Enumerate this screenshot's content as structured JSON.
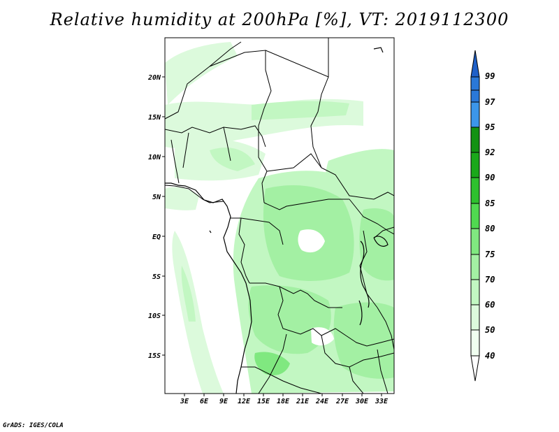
{
  "title": "Relative humidity at 200hPa [%], VT: 2019112300",
  "credit": "GrADS: IGES/COLA",
  "map": {
    "lat_labels": [
      "20N",
      "15N",
      "10N",
      "5N",
      "EQ",
      "5S",
      "10S",
      "15S"
    ],
    "lon_labels": [
      "3E",
      "6E",
      "9E",
      "12E",
      "15E",
      "18E",
      "21E",
      "24E",
      "27E",
      "30E",
      "33E"
    ],
    "lon_range": [
      0,
      35
    ],
    "lat_range": [
      -20,
      25
    ]
  },
  "colorbar": {
    "levels": [
      "99",
      "97",
      "95",
      "92",
      "90",
      "85",
      "80",
      "75",
      "70",
      "60",
      "50",
      "40"
    ],
    "colors": [
      "#1f60c8",
      "#2a78d8",
      "#3c96ea",
      "#139213",
      "#1aa81a",
      "#2ec02e",
      "#50d950",
      "#80e880",
      "#a3f0a3",
      "#c2f7c2",
      "#dcfadc",
      "#f0fff0"
    ]
  }
}
